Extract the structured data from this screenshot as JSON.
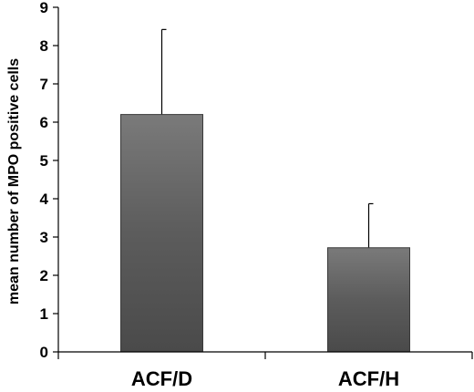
{
  "chart_data": {
    "type": "bar",
    "title": "",
    "xlabel": "",
    "ylabel": "mean number of MPO positive cells",
    "categories": [
      "ACF/D",
      "ACF/H"
    ],
    "values": [
      6.2,
      2.72
    ],
    "error_plus": [
      2.22,
      1.15
    ],
    "ylim": [
      0,
      9
    ],
    "yticks": [
      "0",
      "1",
      "2",
      "3",
      "4",
      "5",
      "6",
      "7",
      "8",
      "9"
    ],
    "grid": false,
    "legend": "none",
    "colors": {
      "bar_top": "#7a7a7a",
      "bar_mid": "#5c5c5c",
      "bar_bottom": "#4a4a4a",
      "axis": "#000000"
    }
  }
}
